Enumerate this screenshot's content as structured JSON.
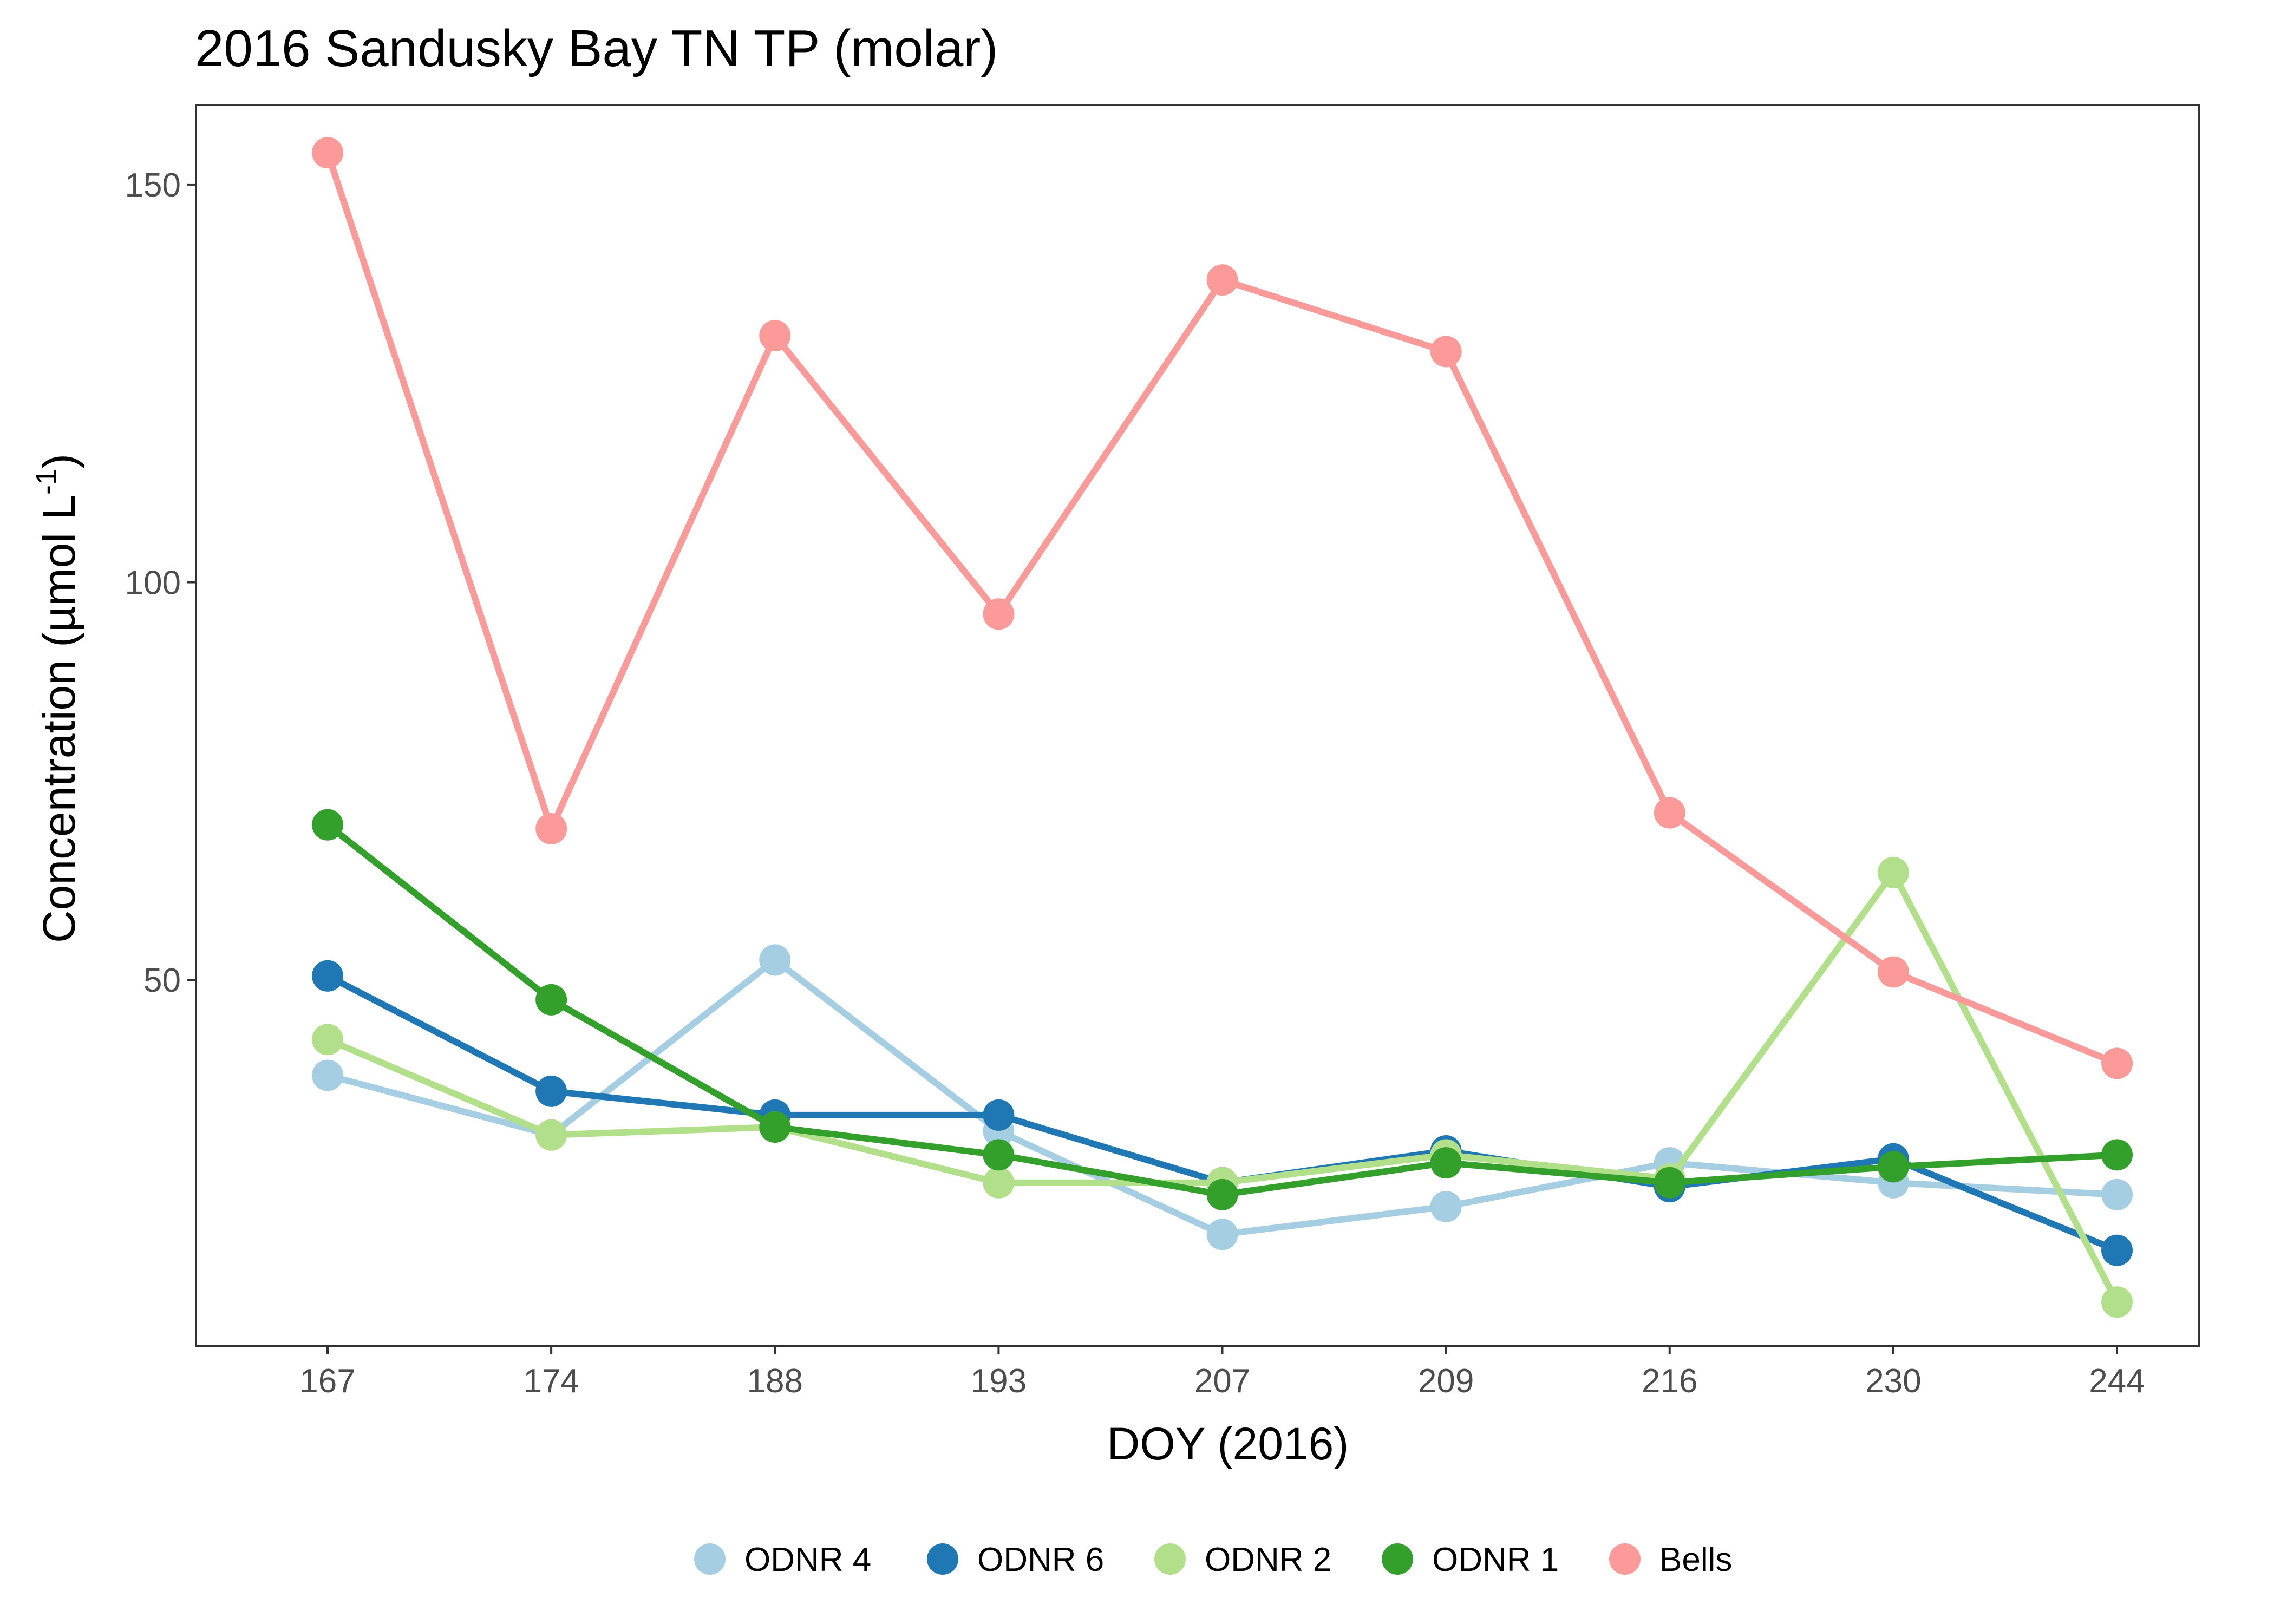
{
  "chart_data": {
    "type": "line",
    "title": "2016 Sandusky Bay TN TP (molar)",
    "xlabel": "DOY (2016)",
    "ylabel": {
      "main": "Concentration (µmol L",
      "superscript": "-1",
      "close": ")"
    },
    "categories": [
      "167",
      "174",
      "188",
      "193",
      "207",
      "209",
      "216",
      "230",
      "244"
    ],
    "ylim": [
      4,
      160
    ],
    "yticks": [
      50,
      100,
      150
    ],
    "grid": false,
    "legend_position": "bottom",
    "series": [
      {
        "name": "ODNR 4",
        "color": "#a6cee3",
        "values": [
          38,
          30.5,
          52.5,
          31,
          18,
          21.5,
          27,
          24.5,
          23
        ]
      },
      {
        "name": "ODNR 6",
        "color": "#1f78b4",
        "values": [
          50.5,
          36,
          33,
          33,
          24.5,
          28.5,
          24,
          27.5,
          16
        ]
      },
      {
        "name": "ODNR 2",
        "color": "#b2df8a",
        "values": [
          42.5,
          30.5,
          31.5,
          24.5,
          24.5,
          28,
          25,
          63.5,
          9.5
        ]
      },
      {
        "name": "ODNR 1",
        "color": "#33a02c",
        "values": [
          69.5,
          47.5,
          31.5,
          28,
          23,
          27,
          24.5,
          26.5,
          28
        ]
      },
      {
        "name": "Bells",
        "color": "#fb9a99",
        "values": [
          154,
          69,
          131,
          96,
          138,
          129,
          71,
          51,
          39.5
        ]
      }
    ]
  }
}
